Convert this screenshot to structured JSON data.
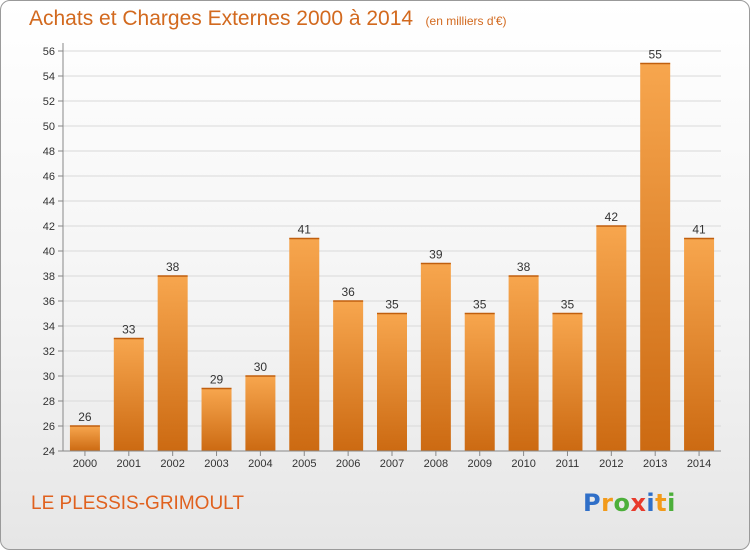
{
  "header": {
    "title": "Achats et Charges Externes 2000 à 2014",
    "unit": "(en milliers d'€)"
  },
  "footer": {
    "commune": "LE PLESSIS-GRIMOULT",
    "logo_letters": [
      "P",
      "r",
      "o",
      "x",
      "i",
      "t",
      "i"
    ],
    "logo_colors": [
      "#2f6fc8",
      "#f29a1a",
      "#4caf3a",
      "#e83a2b",
      "#2f6fc8",
      "#f29a1a",
      "#4caf3a"
    ]
  },
  "colors": {
    "bar_light": "#f7a64e",
    "bar_dark": "#cc6a12",
    "grid": "#d9d9d9",
    "text": "#333333",
    "accent": "#d2691e"
  },
  "chart_data": {
    "type": "bar",
    "title": "Achats et Charges Externes 2000 à 2014",
    "subtitle": "(en milliers d'€)",
    "categories": [
      "2000",
      "2001",
      "2002",
      "2003",
      "2004",
      "2005",
      "2006",
      "2007",
      "2008",
      "2009",
      "2010",
      "2011",
      "2012",
      "2013",
      "2014"
    ],
    "values": [
      26,
      33,
      38,
      29,
      30,
      41,
      36,
      35,
      39,
      35,
      38,
      35,
      42,
      55,
      41
    ],
    "ylim": [
      24,
      56
    ],
    "yticks": [
      24,
      26,
      28,
      30,
      32,
      34,
      36,
      38,
      40,
      42,
      44,
      46,
      48,
      50,
      52,
      54,
      56
    ],
    "grid": true,
    "xlabel": "",
    "ylabel": ""
  }
}
